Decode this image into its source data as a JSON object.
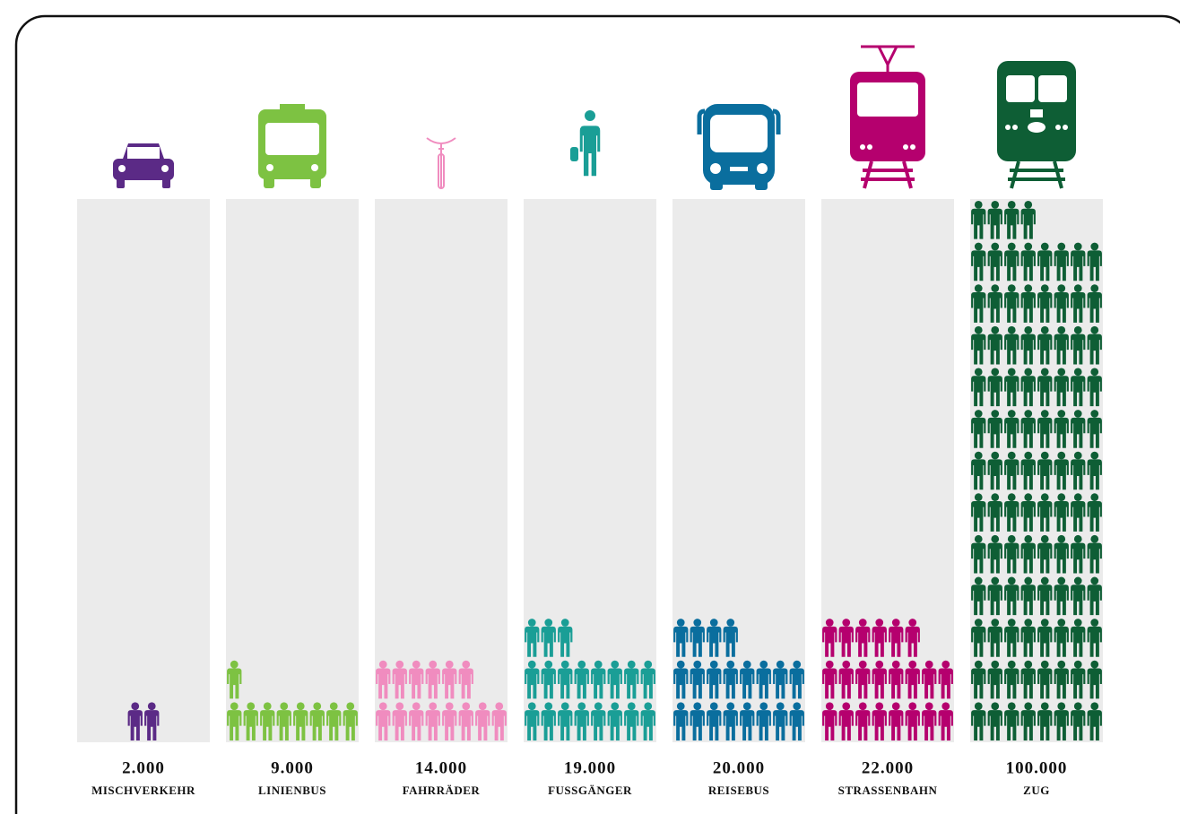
{
  "chart_data": {
    "type": "pictogram",
    "categories": [
      "MISCHVERKEHR",
      "LINIENBUS",
      "FAHRRÄDER",
      "FUSSGÄNGER",
      "REISEBUS",
      "STRASSENBAHN",
      "ZUG"
    ],
    "values": [
      2000,
      9000,
      14000,
      19000,
      20000,
      22000,
      100000
    ],
    "value_labels": [
      "2.000",
      "9.000",
      "14.000",
      "19.000",
      "20.000",
      "22.000",
      "100.000"
    ],
    "colors": [
      "#5b2a86",
      "#7dc242",
      "#f08cbf",
      "#1a9e96",
      "#0a6e9e",
      "#b5006e",
      "#0e5e35"
    ]
  }
}
